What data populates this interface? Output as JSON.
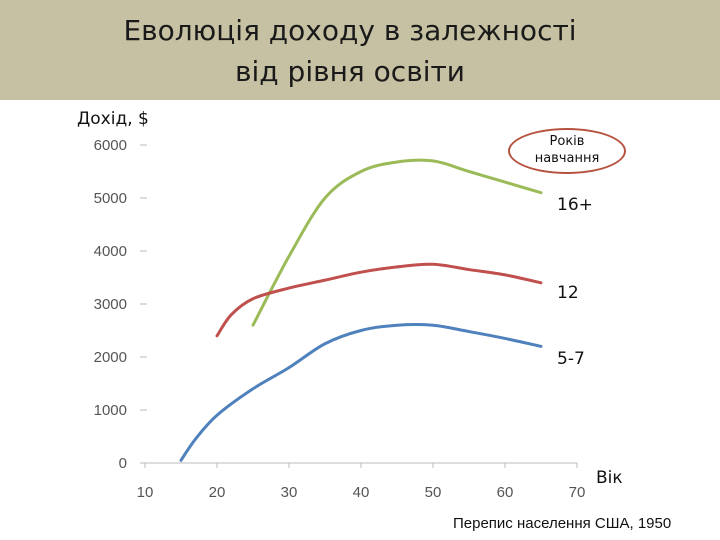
{
  "slide": {
    "title_line1": "Еволюція доходу в залежності",
    "title_line2": "від рівня освіти",
    "source": "Перепис населення США, 1950"
  },
  "chart_data": {
    "type": "line",
    "ylabel": "Дохід, $",
    "xlabel": "Вік",
    "xlim": [
      10,
      70
    ],
    "ylim": [
      0,
      6000
    ],
    "x_ticks": [
      10,
      20,
      30,
      40,
      50,
      60,
      70
    ],
    "y_ticks": [
      0,
      1000,
      2000,
      3000,
      4000,
      5000,
      6000
    ],
    "legend_title": "Років навчання",
    "grid": false,
    "series": [
      {
        "name": "16+",
        "color": "#9bbb59",
        "x": [
          25,
          30,
          35,
          40,
          45,
          50,
          55,
          60,
          65
        ],
        "y": [
          2600,
          3900,
          5000,
          5500,
          5680,
          5700,
          5500,
          5300,
          5100
        ]
      },
      {
        "name": "12",
        "color": "#c0504d",
        "x": [
          20,
          22,
          25,
          30,
          35,
          40,
          45,
          50,
          55,
          60,
          65
        ],
        "y": [
          2400,
          2800,
          3100,
          3300,
          3450,
          3600,
          3700,
          3750,
          3650,
          3550,
          3400
        ]
      },
      {
        "name": "5-7",
        "color": "#4f81bd",
        "x": [
          15,
          17,
          20,
          25,
          30,
          35,
          40,
          45,
          50,
          55,
          60,
          65
        ],
        "y": [
          50,
          450,
          900,
          1400,
          1800,
          2250,
          2500,
          2600,
          2600,
          2480,
          2350,
          2200
        ]
      }
    ]
  }
}
